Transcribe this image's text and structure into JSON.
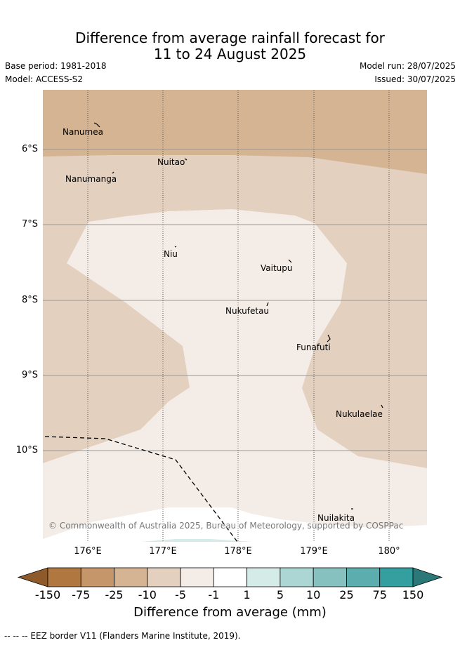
{
  "title_line1": "Difference from average rainfall forecast for",
  "title_line2": "11 to 24 August 2025",
  "base_period": "Base period: 1981-2018",
  "model": "Model: ACCESS-S2",
  "model_run": "Model run: 28/07/2025",
  "issued": "Issued: 30/07/2025",
  "lat_labels": [
    "6°S",
    "7°S",
    "8°S",
    "9°S",
    "10°S"
  ],
  "lon_labels": [
    "176°E",
    "177°E",
    "178°E",
    "179°E",
    "180°"
  ],
  "islands": [
    "Nanumea",
    "Nuitao",
    "Nanumanga",
    "Niu",
    "Vaitupu",
    "Nukufetau",
    "Funafuti",
    "Nukulaelae",
    "Nuilakita"
  ],
  "copyright": "© Commonwealth of Australia 2025, Bureau of Meteorology, supported by COSPPac",
  "colorbar": {
    "ticks": [
      "-150",
      "-75",
      "-25",
      "-10",
      "-5",
      "-1",
      "1",
      "5",
      "10",
      "25",
      "75",
      "150"
    ],
    "colors": [
      "#8e5a2a",
      "#b07840",
      "#c4966a",
      "#d4b492",
      "#e3d0bf",
      "#f4ece6",
      "#ffffff",
      "#d5ebe8",
      "#acd6d4",
      "#86c1bf",
      "#5caeae",
      "#359f9f",
      "#2a7878"
    ],
    "label": "Difference from average (mm)"
  },
  "footer": "-- -- -- EEZ border V11 (Flanders Marine Institute, 2019)."
}
